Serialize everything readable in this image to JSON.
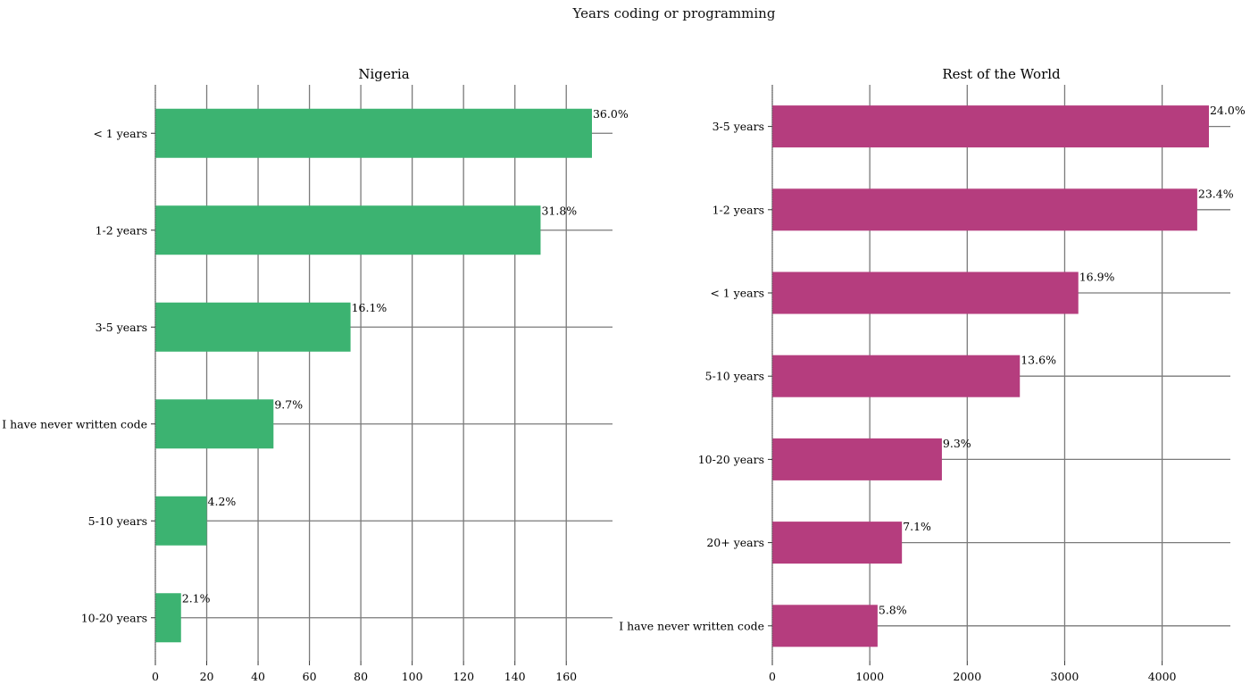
{
  "figure": {
    "title": "Years coding or programming"
  },
  "chart_data": [
    {
      "type": "bar",
      "orientation": "horizontal",
      "title": "Nigeria",
      "color": "#3cb371",
      "categories": [
        "< 1 years",
        "1-2 years",
        "3-5 years",
        "I have never written code",
        "5-10 years",
        "10-20 years"
      ],
      "values": [
        170,
        150,
        76,
        46,
        20,
        10
      ],
      "labels": [
        "36.0%",
        "31.8%",
        "16.1%",
        "9.7%",
        "4.2%",
        "2.1%"
      ],
      "xticks": [
        0,
        20,
        40,
        60,
        80,
        100,
        120,
        140,
        160
      ],
      "xlim": [
        0,
        178
      ],
      "grid": true
    },
    {
      "type": "bar",
      "orientation": "horizontal",
      "title": "Rest of the World",
      "color": "#b53d7e",
      "categories": [
        "3-5 years",
        "1-2 years",
        "< 1 years",
        "5-10 years",
        "10-20 years",
        "20+ years",
        "I have never written code"
      ],
      "values": [
        4480,
        4360,
        3140,
        2540,
        1740,
        1330,
        1080
      ],
      "labels": [
        "24.0%",
        "23.4%",
        "16.9%",
        "13.6%",
        "9.3%",
        "7.1%",
        "5.8%"
      ],
      "xticks": [
        0,
        1000,
        2000,
        3000,
        4000
      ],
      "xlim": [
        0,
        4700
      ],
      "grid": true
    }
  ]
}
